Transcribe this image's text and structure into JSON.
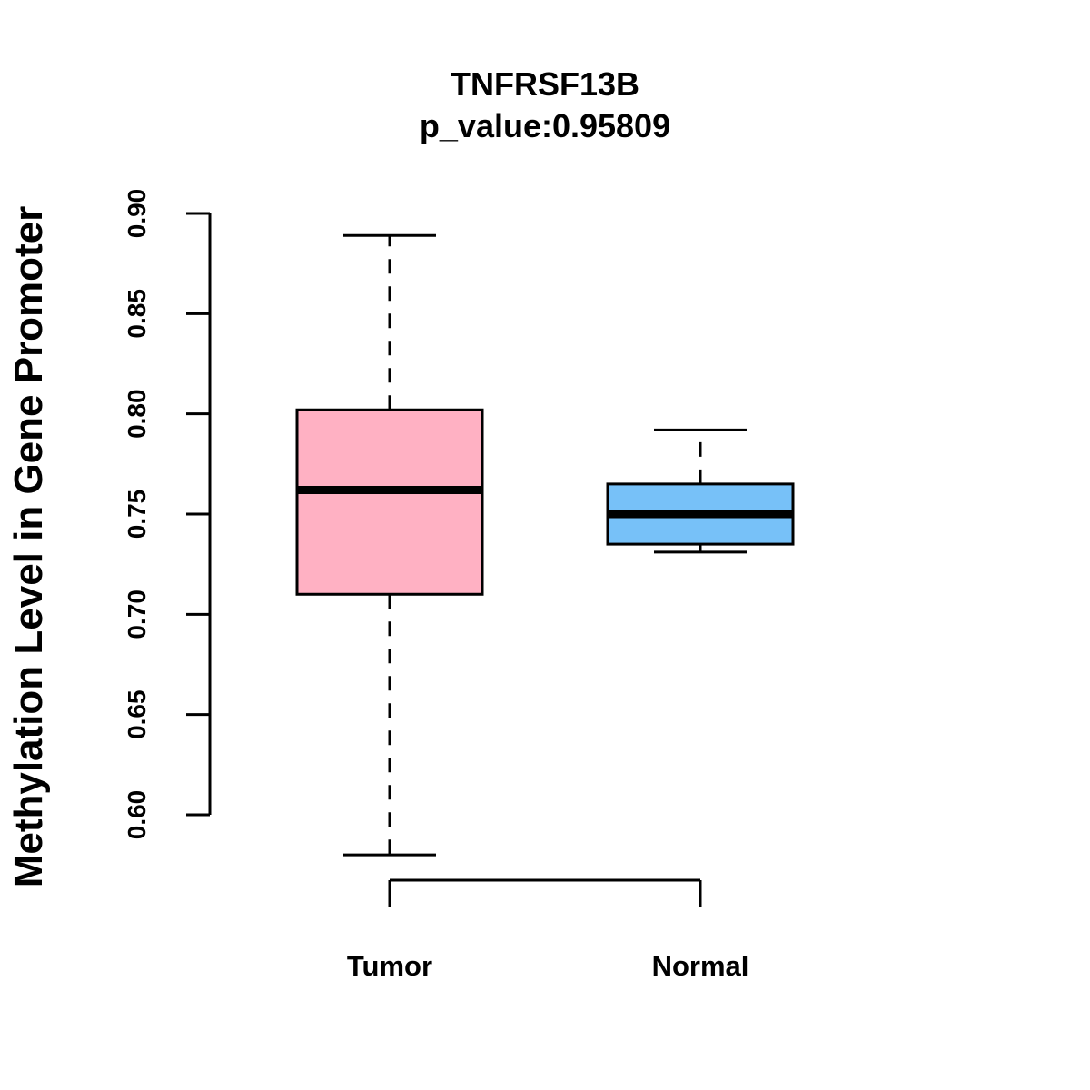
{
  "chart_data": {
    "type": "boxplot",
    "title": "TNFRSF13B",
    "subtitle": "p_value:0.95809",
    "ylabel": "Methylation Level in Gene Promoter",
    "xlabel": "",
    "ylim": [
      0.6,
      0.9
    ],
    "yticks": [
      0.6,
      0.65,
      0.7,
      0.75,
      0.8,
      0.85,
      0.9
    ],
    "ytick_labels": [
      "0.60",
      "0.65",
      "0.70",
      "0.75",
      "0.80",
      "0.85",
      "0.90"
    ],
    "grid": false,
    "categories": [
      "Tumor",
      "Normal"
    ],
    "boxes": [
      {
        "category": "Tumor",
        "whisker_low": 0.58,
        "q1": 0.71,
        "median": 0.762,
        "q3": 0.802,
        "whisker_high": 0.889,
        "color": "#FFB1C3"
      },
      {
        "category": "Normal",
        "whisker_low": 0.731,
        "q1": 0.735,
        "median": 0.75,
        "q3": 0.765,
        "whisker_high": 0.792,
        "color": "#77C1F8"
      }
    ]
  }
}
